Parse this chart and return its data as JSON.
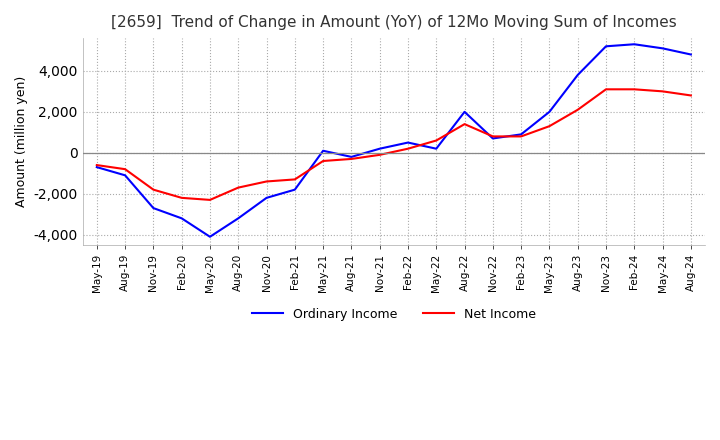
{
  "title": "[2659]  Trend of Change in Amount (YoY) of 12Mo Moving Sum of Incomes",
  "ylabel": "Amount (million yen)",
  "ylim": [
    -4500,
    5600
  ],
  "yticks": [
    -4000,
    -2000,
    0,
    2000,
    4000
  ],
  "line_colors": {
    "ordinary": "#0000FF",
    "net": "#FF0000"
  },
  "legend_labels": [
    "Ordinary Income",
    "Net Income"
  ],
  "x_labels": [
    "May-19",
    "Aug-19",
    "Nov-19",
    "Feb-20",
    "May-20",
    "Aug-20",
    "Nov-20",
    "Feb-21",
    "May-21",
    "Aug-21",
    "Nov-21",
    "Feb-22",
    "May-22",
    "Aug-22",
    "Nov-22",
    "Feb-23",
    "May-23",
    "Aug-23",
    "Nov-23",
    "Feb-24",
    "May-24",
    "Aug-24"
  ],
  "ordinary_income": [
    -700,
    -1100,
    -2700,
    -3200,
    -4100,
    -3200,
    -2200,
    -1800,
    100,
    -200,
    200,
    500,
    200,
    2000,
    700,
    900,
    2000,
    3800,
    5200,
    5300,
    5100,
    4800
  ],
  "net_income": [
    -600,
    -800,
    -1800,
    -2200,
    -2300,
    -1700,
    -1400,
    -1300,
    -400,
    -300,
    -100,
    200,
    600,
    1400,
    800,
    800,
    1300,
    2100,
    3100,
    3100,
    3000,
    2800
  ]
}
